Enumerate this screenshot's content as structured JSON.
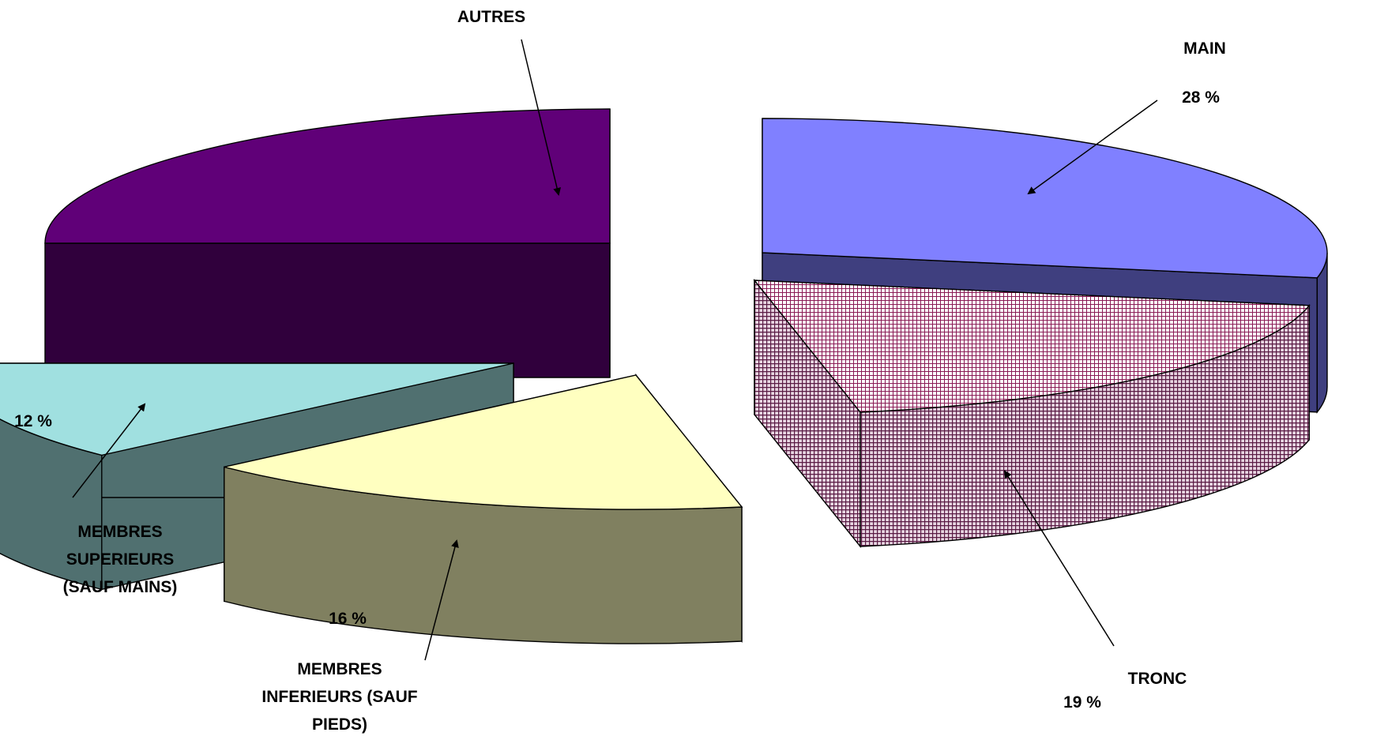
{
  "chart_data": {
    "type": "pie",
    "style": "3d-exploded",
    "slices": [
      {
        "label": "MAIN",
        "value": 28,
        "value_label": "28 %",
        "top_color": "#8080FF",
        "side_color": "#3F3F7F",
        "pattern": "none"
      },
      {
        "label": "TRONC",
        "value": 19,
        "value_label": "19 %",
        "top_color": "#A0306A",
        "side_color": "#5A2048",
        "pattern": "grid"
      },
      {
        "label": "MEMBRES INFERIEURS (SAUF PIEDS)",
        "label_lines": [
          "MEMBRES",
          "INFERIEURS (SAUF",
          "PIEDS)"
        ],
        "value": 16,
        "value_label": "16 %",
        "top_color": "#FFFFC0",
        "side_color": "#808060",
        "pattern": "none"
      },
      {
        "label": "MEMBRES SUPERIEURS (SAUF MAINS)",
        "label_lines": [
          "MEMBRES",
          "SUPERIEURS",
          "(SAUF MAINS)"
        ],
        "value": 12,
        "value_label": "12 %",
        "top_color": "#A0E0E0",
        "side_color": "#507070",
        "pattern": "none"
      },
      {
        "label": "AUTRES",
        "value": 25,
        "top_color": "#600078",
        "side_color": "#30003C",
        "pattern": "none"
      }
    ],
    "legend": "none"
  }
}
